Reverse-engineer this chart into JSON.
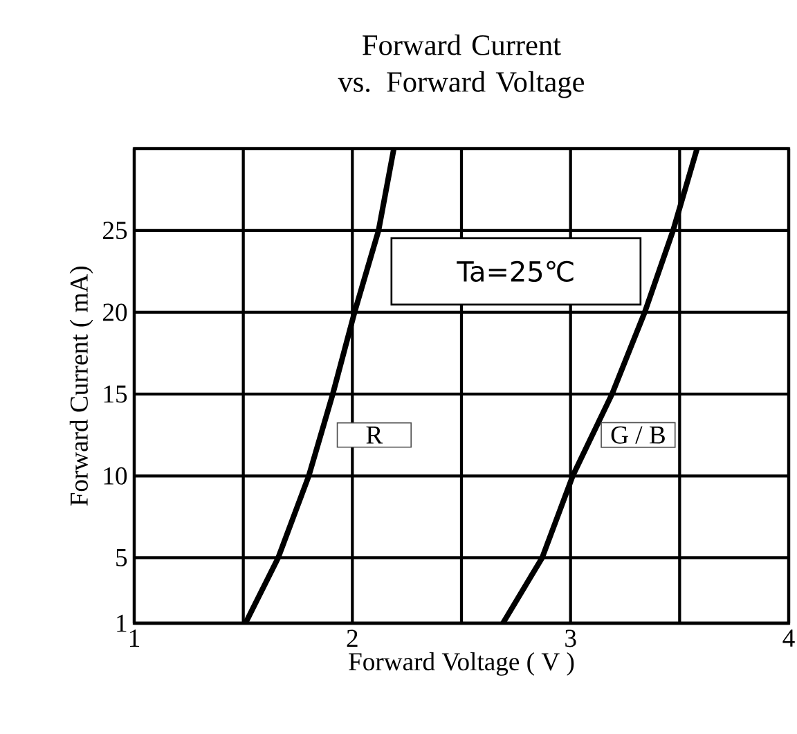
{
  "chart_data": {
    "type": "line",
    "title": "Forward Current vs. Forward Voltage",
    "xlabel": "Forward Voltage ( V )",
    "ylabel": "Forward Current ( mA)",
    "annotations": [
      "Ta=25℃"
    ],
    "series": [
      {
        "name": "R",
        "color": "#000000",
        "x": [
          1.51,
          1.66,
          1.8,
          1.91,
          2.01,
          2.12,
          2.19
        ],
        "values": [
          1,
          5,
          10,
          15,
          20,
          25,
          30
        ]
      },
      {
        "name": "G / B",
        "color": "#000000",
        "x": [
          2.69,
          2.87,
          3.01,
          3.19,
          3.34,
          3.47,
          3.58
        ],
        "values": [
          1,
          5,
          10,
          15,
          20,
          25,
          30
        ]
      }
    ],
    "xlim": [
      1,
      4
    ],
    "ylim": [
      1,
      30
    ],
    "xticks": [
      1,
      {
        "value": 1.5,
        "label": null
      },
      2,
      {
        "value": 2.5,
        "label": null
      },
      3,
      {
        "value": 3.5,
        "label": null
      },
      4
    ],
    "yticks": [
      1,
      5,
      10,
      15,
      20,
      25,
      {
        "value": 30,
        "label": null
      }
    ],
    "grid": true,
    "marker": "none",
    "line_style": "solid",
    "legend": false
  }
}
